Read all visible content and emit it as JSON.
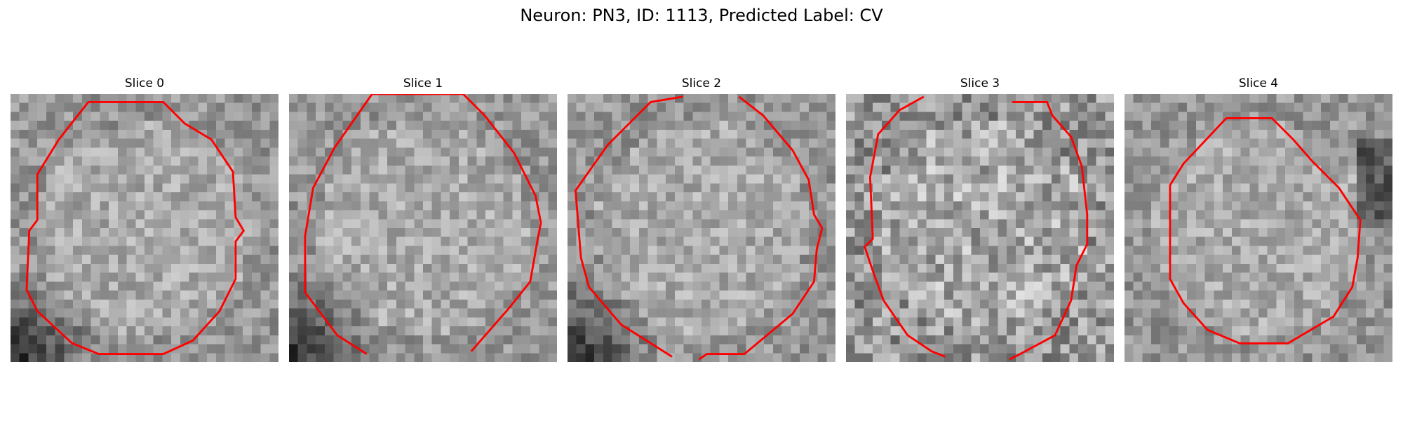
{
  "figure": {
    "title": "Neuron: PN3, ID: 1113, Predicted Label: CV"
  },
  "colors": {
    "contour": "#ff0000",
    "background": "#ffffff"
  },
  "slices": [
    {
      "title": "Slice 0",
      "contour": [
        [
          0.29,
          0.03
        ],
        [
          0.57,
          0.03
        ],
        [
          0.65,
          0.11
        ],
        [
          0.75,
          0.17
        ],
        [
          0.83,
          0.29
        ],
        [
          0.84,
          0.46
        ],
        [
          0.87,
          0.51
        ],
        [
          0.84,
          0.55
        ],
        [
          0.84,
          0.69
        ],
        [
          0.78,
          0.81
        ],
        [
          0.68,
          0.92
        ],
        [
          0.57,
          0.97
        ],
        [
          0.33,
          0.97
        ],
        [
          0.23,
          0.93
        ],
        [
          0.1,
          0.81
        ],
        [
          0.06,
          0.73
        ],
        [
          0.07,
          0.51
        ],
        [
          0.1,
          0.47
        ],
        [
          0.1,
          0.3
        ],
        [
          0.18,
          0.17
        ],
        [
          0.29,
          0.03
        ]
      ],
      "dark_corner": "bottom-left"
    },
    {
      "title": "Slice 1",
      "contour": [
        [
          0.31,
          0.0
        ],
        [
          0.65,
          0.0
        ],
        [
          0.73,
          0.08
        ],
        [
          0.84,
          0.22
        ],
        [
          0.88,
          0.3
        ],
        [
          0.92,
          0.38
        ],
        [
          0.94,
          0.48
        ],
        [
          0.93,
          0.53
        ],
        [
          0.9,
          0.7
        ],
        [
          0.82,
          0.8
        ],
        [
          0.68,
          0.96
        ]
      ],
      "contour_extra": [
        [
          0.29,
          0.97
        ],
        [
          0.18,
          0.9
        ],
        [
          0.06,
          0.74
        ],
        [
          0.06,
          0.53
        ],
        [
          0.09,
          0.35
        ],
        [
          0.17,
          0.2
        ],
        [
          0.31,
          0.0
        ]
      ],
      "dark_corner": "bottom-left"
    },
    {
      "title": "Slice 2",
      "contour": [
        [
          0.43,
          0.01
        ],
        [
          0.31,
          0.03
        ],
        [
          0.15,
          0.19
        ],
        [
          0.03,
          0.36
        ],
        [
          0.05,
          0.61
        ],
        [
          0.08,
          0.72
        ],
        [
          0.2,
          0.86
        ],
        [
          0.39,
          0.98
        ]
      ],
      "contour_extra": [
        [
          0.64,
          0.01
        ],
        [
          0.73,
          0.08
        ],
        [
          0.84,
          0.21
        ],
        [
          0.9,
          0.32
        ],
        [
          0.92,
          0.45
        ],
        [
          0.95,
          0.5
        ],
        [
          0.93,
          0.58
        ],
        [
          0.92,
          0.7
        ],
        [
          0.84,
          0.82
        ],
        [
          0.66,
          0.97
        ],
        [
          0.52,
          0.97
        ],
        [
          0.49,
          0.99
        ]
      ],
      "dark_corner": "bottom-left"
    },
    {
      "title": "Slice 3",
      "contour": [
        [
          0.29,
          0.01
        ],
        [
          0.2,
          0.06
        ],
        [
          0.12,
          0.15
        ],
        [
          0.09,
          0.31
        ],
        [
          0.1,
          0.54
        ],
        [
          0.07,
          0.57
        ],
        [
          0.1,
          0.66
        ],
        [
          0.14,
          0.77
        ],
        [
          0.23,
          0.9
        ],
        [
          0.32,
          0.96
        ],
        [
          0.37,
          0.98
        ]
      ],
      "contour_extra": [
        [
          0.62,
          0.03
        ],
        [
          0.75,
          0.03
        ],
        [
          0.77,
          0.08
        ],
        [
          0.84,
          0.16
        ],
        [
          0.88,
          0.27
        ],
        [
          0.9,
          0.45
        ],
        [
          0.9,
          0.56
        ],
        [
          0.86,
          0.64
        ],
        [
          0.84,
          0.77
        ],
        [
          0.78,
          0.9
        ],
        [
          0.65,
          0.97
        ],
        [
          0.61,
          0.99
        ]
      ],
      "dark_corner": "none"
    },
    {
      "title": "Slice 4",
      "contour": [
        [
          0.38,
          0.09
        ],
        [
          0.55,
          0.09
        ],
        [
          0.63,
          0.17
        ],
        [
          0.7,
          0.25
        ],
        [
          0.8,
          0.35
        ],
        [
          0.88,
          0.47
        ],
        [
          0.87,
          0.61
        ],
        [
          0.85,
          0.72
        ],
        [
          0.78,
          0.83
        ],
        [
          0.61,
          0.93
        ],
        [
          0.43,
          0.93
        ],
        [
          0.31,
          0.88
        ],
        [
          0.22,
          0.78
        ],
        [
          0.17,
          0.69
        ],
        [
          0.17,
          0.34
        ],
        [
          0.22,
          0.26
        ],
        [
          0.38,
          0.09
        ]
      ],
      "dark_corner": "right"
    }
  ]
}
